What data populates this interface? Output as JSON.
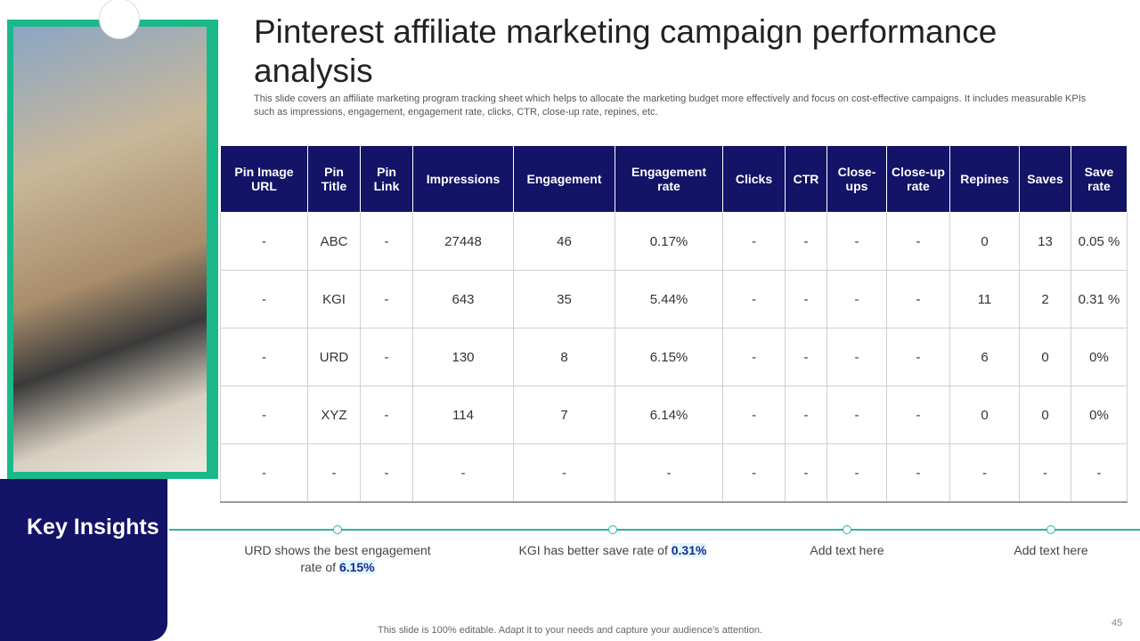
{
  "header": {
    "title": "Pinterest affiliate marketing campaign performance analysis",
    "subtitle": "This slide covers an affiliate marketing program tracking sheet which helps to allocate the marketing budget more effectively and focus on cost-effective campaigns. It includes measurable KPIs such as impressions, engagement, engagement rate, clicks, CTR, close-up rate, repines, etc."
  },
  "table": {
    "columns": [
      "Pin Image URL",
      "Pin Title",
      "Pin Link",
      "Impressions",
      "Engagement",
      "Engagement rate",
      "Clicks",
      "CTR",
      "Close-ups",
      "Close-up rate",
      "Repines",
      "Saves",
      "Save rate"
    ],
    "rows": [
      [
        "-",
        "ABC",
        "-",
        "27448",
        "46",
        "0.17%",
        "-",
        "-",
        "-",
        "-",
        "0",
        "13",
        "0.05 %"
      ],
      [
        "-",
        "KGI",
        "-",
        "643",
        "35",
        "5.44%",
        "-",
        "-",
        "-",
        "-",
        "11",
        "2",
        "0.31 %"
      ],
      [
        "-",
        "URD",
        "-",
        "130",
        "8",
        "6.15%",
        "-",
        "-",
        "-",
        "-",
        "6",
        "0",
        "0%"
      ],
      [
        "-",
        "XYZ",
        "-",
        "114",
        "7",
        "6.14%",
        "-",
        "-",
        "-",
        "-",
        "0",
        "0",
        "0%"
      ],
      [
        "-",
        "-",
        "-",
        "-",
        "-",
        "-",
        "-",
        "-",
        "-",
        "-",
        "-",
        "-",
        "-"
      ]
    ]
  },
  "insights": {
    "title": "Key Insights",
    "items": [
      {
        "text": "URD shows the best engagement rate of",
        "highlight": "6.15%"
      },
      {
        "text": "KGI has better save rate of",
        "highlight": "0.31%"
      },
      {
        "text": "Add text here"
      },
      {
        "text": "Add text here"
      }
    ]
  },
  "footer": {
    "note": "This slide is 100% editable. Adapt it to your needs and capture your audience's attention.",
    "page": "45"
  }
}
